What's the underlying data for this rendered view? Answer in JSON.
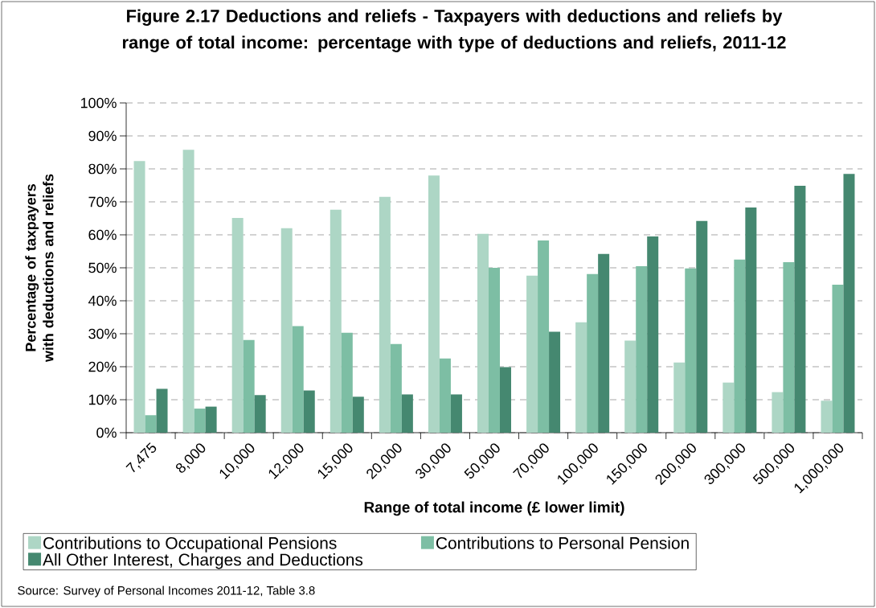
{
  "chart_data": {
    "type": "bar",
    "title": "Figure 2.17  Deductions and reliefs - Taxpayers with deductions and reliefs by range of total income: percentage with type of deductions and reliefs, 2011-12",
    "xlabel": "Range of total income (£ lower limit)",
    "ylabel": "Percentage of taxpayers with deductions and reliefs",
    "categories": [
      "7,475",
      "8,000",
      "10,000",
      "12,000",
      "15,000",
      "20,000",
      "30,000",
      "50,000",
      "70,000",
      "100,000",
      "150,000",
      "200,000",
      "300,000",
      "500,000",
      "1,000,000"
    ],
    "series": [
      {
        "name": "Contributions to Occupational Pensions",
        "color": "#add6c5",
        "values": [
          82.4,
          85.8,
          65.1,
          62.0,
          67.6,
          71.5,
          78.0,
          60.3,
          47.6,
          33.5,
          27.9,
          21.3,
          15.2,
          12.3,
          9.7
        ]
      },
      {
        "name": "Contributions to Personal Pension",
        "color": "#7dbea4",
        "values": [
          5.3,
          7.3,
          28.1,
          32.3,
          30.3,
          26.9,
          22.5,
          50.0,
          58.3,
          48.1,
          50.5,
          49.8,
          52.5,
          51.7,
          44.9
        ]
      },
      {
        "name": "All Other Interest, Charges and Deductions",
        "color": "#458870",
        "values": [
          13.3,
          7.9,
          11.4,
          12.8,
          10.9,
          11.6,
          11.6,
          19.9,
          30.6,
          54.2,
          59.5,
          64.2,
          68.3,
          74.9,
          78.5
        ]
      }
    ],
    "ylim": [
      0,
      100
    ],
    "yticks": [
      {
        "value": 0,
        "label": "0%"
      },
      {
        "value": 10,
        "label": "10%"
      },
      {
        "value": 20,
        "label": "20%"
      },
      {
        "value": 30,
        "label": "30%"
      },
      {
        "value": 40,
        "label": "40%"
      },
      {
        "value": 50,
        "label": "50%"
      },
      {
        "value": 60,
        "label": "60%"
      },
      {
        "value": 70,
        "label": "70%"
      },
      {
        "value": 80,
        "label": "80%"
      },
      {
        "value": 90,
        "label": "90%"
      },
      {
        "value": 100,
        "label": "100%"
      }
    ],
    "grid": "y",
    "legend": "bottom",
    "annotations": [
      "Source: Survey of Personal Incomes 2011-12, Table 3.8"
    ]
  }
}
